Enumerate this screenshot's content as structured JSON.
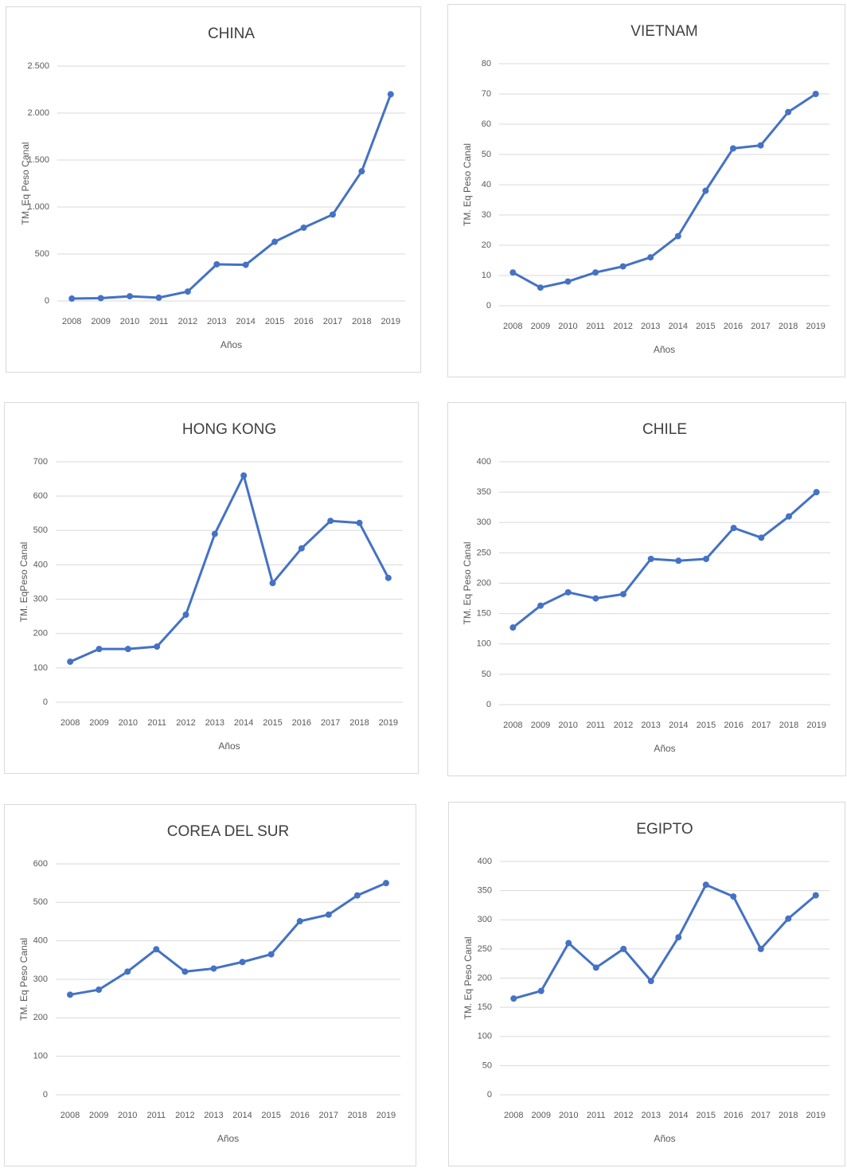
{
  "chart_data": [
    {
      "type": "line",
      "title": "CHINA",
      "y_label": "TM. Eq Peso Canal",
      "x_label": "Años",
      "color": "#4472c4",
      "grid": true,
      "categories": [
        "2008",
        "2009",
        "2010",
        "2011",
        "2012",
        "2013",
        "2014",
        "2015",
        "2016",
        "2017",
        "2018",
        "2019"
      ],
      "values": [
        25,
        30,
        50,
        35,
        100,
        390,
        385,
        630,
        780,
        920,
        1380,
        2200
      ],
      "ylim": [
        0,
        2500
      ],
      "yticks": [
        0,
        500,
        {
          "value": 1000,
          "label": "1.000"
        },
        {
          "value": 1500,
          "label": "1.500"
        },
        {
          "value": 2000,
          "label": "2.000"
        },
        {
          "value": 2500,
          "label": "2.500"
        }
      ]
    },
    {
      "type": "line",
      "title": "VIETNAM",
      "y_label": "TM. Eq Peso Canal",
      "x_label": "Años",
      "color": "#4472c4",
      "grid": true,
      "categories": [
        "2008",
        "2009",
        "2010",
        "2011",
        "2012",
        "2013",
        "2014",
        "2015",
        "2016",
        "2017",
        "2018",
        "2019"
      ],
      "values": [
        11,
        6,
        8,
        11,
        13,
        16,
        23,
        38,
        52,
        53,
        64,
        70
      ],
      "ylim": [
        0,
        80
      ],
      "yticks": [
        0,
        10,
        20,
        30,
        40,
        50,
        60,
        70,
        80
      ]
    },
    {
      "type": "line",
      "title": "HONG KONG",
      "y_label": "TM. EqPeso Canal",
      "x_label": "Años",
      "color": "#4472c4",
      "grid": true,
      "categories": [
        "2008",
        "2009",
        "2010",
        "2011",
        "2012",
        "2013",
        "2014",
        "2015",
        "2016",
        "2017",
        "2018",
        "2019"
      ],
      "values": [
        118,
        155,
        155,
        162,
        255,
        490,
        660,
        347,
        448,
        528,
        522,
        362
      ],
      "ylim": [
        0,
        700
      ],
      "yticks": [
        0,
        100,
        200,
        300,
        400,
        500,
        600,
        700
      ]
    },
    {
      "type": "line",
      "title": "CHILE",
      "y_label": "TM. Eq Peso Canal",
      "x_label": "Años",
      "color": "#4472c4",
      "grid": true,
      "categories": [
        "2008",
        "2009",
        "2010",
        "2011",
        "2012",
        "2013",
        "2014",
        "2015",
        "2016",
        "2017",
        "2018",
        "2019"
      ],
      "values": [
        127,
        163,
        185,
        175,
        182,
        240,
        237,
        240,
        291,
        275,
        310,
        350
      ],
      "ylim": [
        0,
        400
      ],
      "yticks": [
        0,
        50,
        100,
        150,
        200,
        250,
        300,
        350,
        400
      ]
    },
    {
      "type": "line",
      "title": "COREA DEL SUR",
      "y_label": "TM. Eq Peso Canal",
      "x_label": "Años",
      "color": "#4472c4",
      "grid": true,
      "categories": [
        "2008",
        "2009",
        "2010",
        "2011",
        "2012",
        "2013",
        "2014",
        "2015",
        "2016",
        "2017",
        "2018",
        "2019"
      ],
      "values": [
        260,
        273,
        320,
        378,
        320,
        328,
        345,
        365,
        451,
        468,
        518,
        550
      ],
      "ylim": [
        0,
        600
      ],
      "yticks": [
        0,
        100,
        200,
        300,
        400,
        500,
        600
      ]
    },
    {
      "type": "line",
      "title": "EGIPTO",
      "y_label": "TM. Eq Peso Canal",
      "x_label": "Años",
      "color": "#4472c4",
      "grid": true,
      "categories": [
        "2008",
        "2009",
        "2010",
        "2011",
        "2012",
        "2013",
        "2014",
        "2015",
        "2016",
        "2017",
        "2018",
        "2019"
      ],
      "values": [
        165,
        178,
        260,
        218,
        250,
        195,
        270,
        360,
        340,
        250,
        302,
        342
      ],
      "ylim": [
        0,
        400
      ],
      "yticks": [
        0,
        50,
        100,
        150,
        200,
        250,
        300,
        350,
        400
      ]
    }
  ]
}
